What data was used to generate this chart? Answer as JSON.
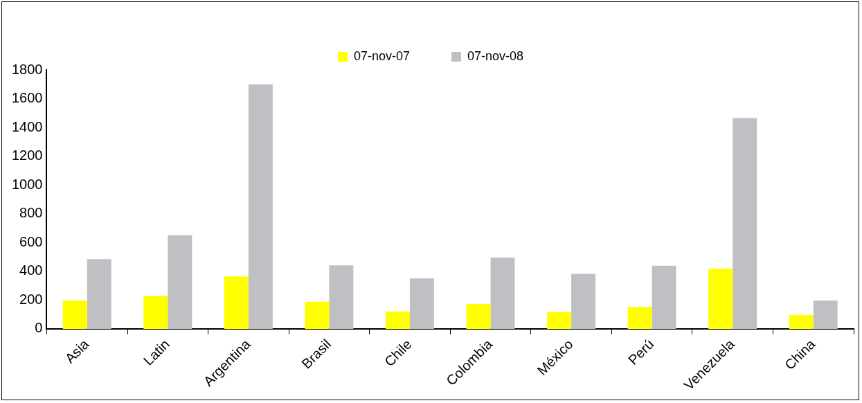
{
  "chart_data": {
    "type": "bar",
    "categories": [
      "Asia",
      "Latin",
      "Argentina",
      "Brasil",
      "Chile",
      "Colombia",
      "México",
      "Perú",
      "Venezuela",
      "China"
    ],
    "series": [
      {
        "name": "07-nov-07",
        "color": "#ffff00",
        "values": [
          197,
          230,
          364,
          189,
          121,
          173,
          118,
          153,
          419,
          96
        ]
      },
      {
        "name": "07-nov-08",
        "color": "#c0c0c4",
        "values": [
          485,
          651,
          1700,
          442,
          351,
          496,
          382,
          439,
          1465,
          197
        ]
      }
    ],
    "ylim": [
      0,
      1800
    ],
    "yticks": [
      0,
      200,
      400,
      600,
      800,
      1000,
      1200,
      1400,
      1600,
      1800
    ],
    "grid": false,
    "legend": "top"
  }
}
